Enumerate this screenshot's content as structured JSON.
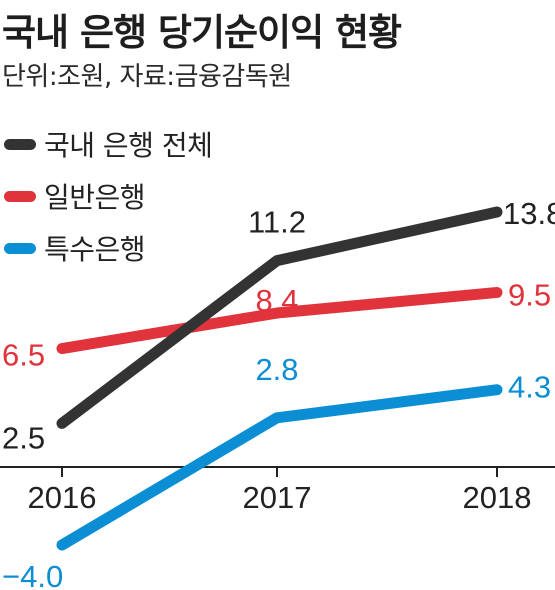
{
  "chart_data": {
    "type": "line",
    "title": "국내 은행 당기순이익 현황",
    "subtitle": "단위:조원, 자료:금융감독원",
    "categories": [
      "2016",
      "2017",
      "2018"
    ],
    "ylim": [
      -4.0,
      13.8
    ],
    "grid": false,
    "legend_position": "top-left",
    "series": [
      {
        "name": "국내 은행 전체",
        "color": "#333333",
        "values": [
          2.5,
          11.2,
          13.8
        ],
        "labels": [
          "2.5",
          "11.2",
          "13.8"
        ]
      },
      {
        "name": "일반은행",
        "color": "#e0333c",
        "values": [
          6.5,
          8.4,
          9.5
        ],
        "labels": [
          "6.5",
          "8.4",
          "9.5"
        ]
      },
      {
        "name": "특수은행",
        "color": "#0b8ed3",
        "values": [
          -4.0,
          2.8,
          4.3
        ],
        "labels": [
          "−4.0",
          "2.8",
          "4.3"
        ]
      }
    ]
  }
}
